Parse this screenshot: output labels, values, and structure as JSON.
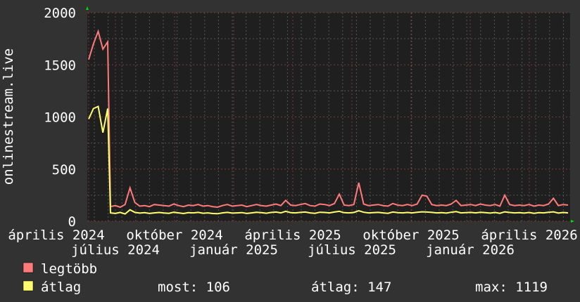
{
  "chart_data": {
    "type": "line",
    "ylabel": "onlinestream.live",
    "ylim": [
      0,
      2000
    ],
    "yticks": [
      "0",
      "500",
      "1000",
      "1500",
      "2000"
    ],
    "x_range": [
      "2024-03-25",
      "2026-04-10"
    ],
    "xtick_labels": [
      "április 2024",
      "július 2024",
      "október 2024",
      "január 2025",
      "április 2025",
      "július 2025",
      "október 2025",
      "január 2026",
      "április 2026"
    ],
    "grid": true,
    "legend_placement": "bottom-left",
    "series": [
      {
        "name": "legtöbb",
        "color": "#ff7a7a",
        "values": [
          1550,
          1700,
          1820,
          1650,
          1720,
          140,
          150,
          135,
          160,
          320,
          180,
          145,
          150,
          140,
          160,
          155,
          150,
          145,
          165,
          150,
          140,
          155,
          150,
          160,
          145,
          150,
          140,
          135,
          150,
          160,
          145,
          150,
          155,
          140,
          150,
          160,
          150,
          145,
          155,
          165,
          150,
          200,
          155,
          150,
          160,
          170,
          150,
          145,
          165,
          160,
          150,
          170,
          260,
          155,
          150,
          160,
          370,
          165,
          150,
          155,
          160,
          150,
          145,
          170,
          155,
          150,
          160,
          150,
          165,
          250,
          240,
          160,
          150,
          155,
          150,
          165,
          200,
          150,
          155,
          160,
          150,
          165,
          155,
          150,
          160,
          145,
          250,
          160,
          150,
          155,
          150,
          160,
          145,
          155,
          150,
          165,
          220,
          150,
          160,
          155
        ]
      },
      {
        "name": "átlag",
        "color": "#ffff6e",
        "values": [
          980,
          1080,
          1100,
          850,
          1080,
          80,
          75,
          85,
          70,
          110,
          85,
          78,
          82,
          75,
          80,
          84,
          79,
          76,
          86,
          80,
          74,
          82,
          80,
          85,
          77,
          80,
          74,
          72,
          80,
          85,
          78,
          80,
          83,
          75,
          80,
          86,
          82,
          77,
          84,
          88,
          80,
          95,
          83,
          80,
          85,
          88,
          80,
          76,
          86,
          84,
          80,
          88,
          95,
          82,
          80,
          84,
          100,
          86,
          80,
          82,
          85,
          80,
          76,
          88,
          82,
          80,
          84,
          80,
          86,
          90,
          88,
          85,
          80,
          82,
          78,
          86,
          92,
          80,
          82,
          85,
          80,
          86,
          82,
          78,
          84,
          76,
          90,
          84,
          80,
          82,
          78,
          84,
          76,
          82,
          80,
          86,
          90,
          78,
          84,
          80
        ]
      }
    ]
  },
  "legend": {
    "items": [
      {
        "label": "legtöbb",
        "color": "#ff7a7a"
      },
      {
        "label": "átlag",
        "color": "#ffff6e"
      }
    ],
    "stats": {
      "now": "most: 106",
      "avg": "átlag: 147",
      "max": "max: 1119"
    }
  }
}
